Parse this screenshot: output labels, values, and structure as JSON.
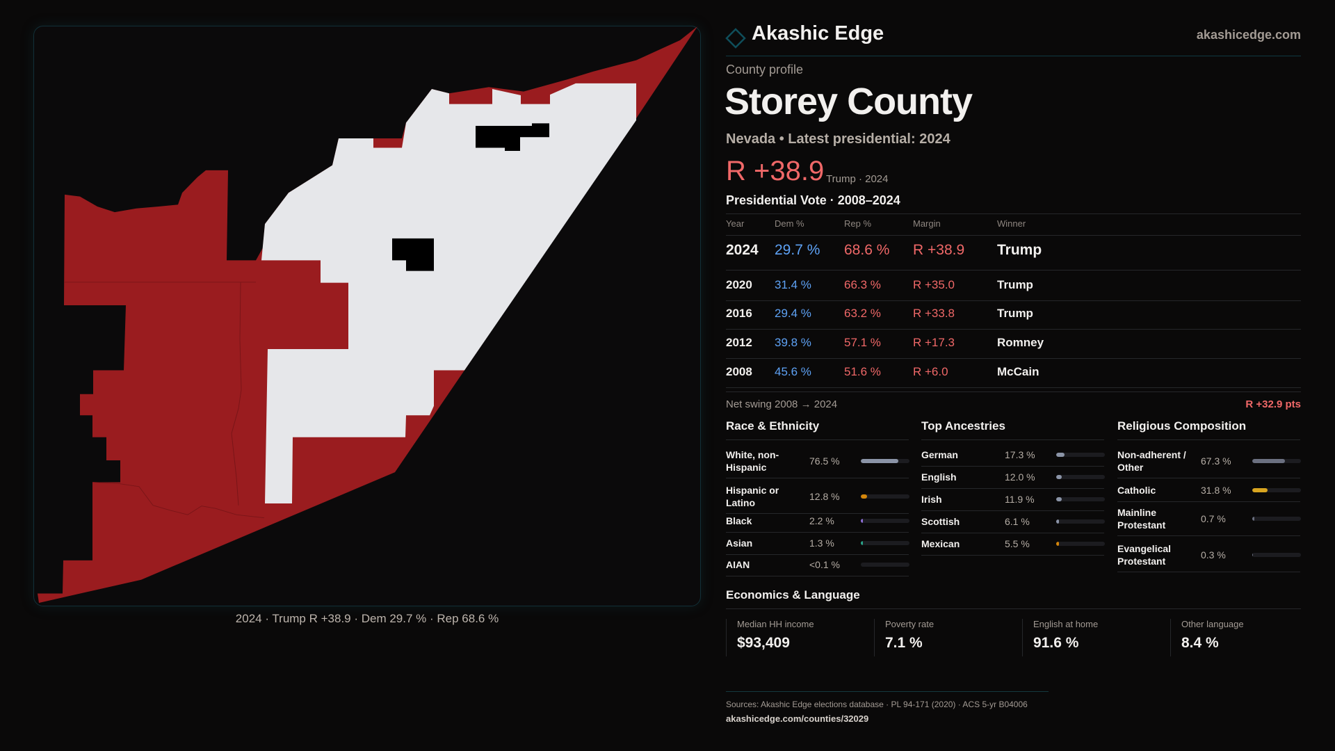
{
  "brand": {
    "name": "Akashic Edge",
    "site": "akashicedge.com",
    "accent": "#0f4e5a"
  },
  "profile": {
    "kicker": "County profile",
    "title": "Storey County",
    "subtitle": "Nevada • Latest presidential: 2024",
    "margin": "R +38.9",
    "margin_note": "Trump · 2024"
  },
  "map": {
    "caption": "2024 · Trump R +38.9 · Dem 29.7 % · Rep 68.6 %",
    "colors": {
      "rep": "#9a1c1f",
      "no_data": "#e6e7ea"
    }
  },
  "votes": {
    "title": "Presidential Vote · 2008–2024",
    "headers": [
      "Year",
      "Dem %",
      "Rep %",
      "Margin",
      "Winner"
    ],
    "rows": [
      {
        "year": "2024",
        "dem": "29.7 %",
        "rep": "68.6 %",
        "margin": "R +38.9",
        "winner": "Trump"
      },
      {
        "year": "2020",
        "dem": "31.4 %",
        "rep": "66.3 %",
        "margin": "R +35.0",
        "winner": "Trump"
      },
      {
        "year": "2016",
        "dem": "29.4 %",
        "rep": "63.2 %",
        "margin": "R +33.8",
        "winner": "Trump"
      },
      {
        "year": "2012",
        "dem": "39.8 %",
        "rep": "57.1 %",
        "margin": "R +17.3",
        "winner": "Romney"
      },
      {
        "year": "2008",
        "dem": "45.6 %",
        "rep": "51.6 %",
        "margin": "R +6.0",
        "winner": "McCain"
      }
    ]
  },
  "swing": {
    "label": "Net swing 2008 → 2024",
    "value": "R +32.9 pts"
  },
  "race": {
    "title": "Race & Ethnicity",
    "items": [
      {
        "label": "White, non-Hispanic",
        "value": "76.5 %",
        "pct": 76.5,
        "color": "#8b94a7"
      },
      {
        "label": "Hispanic or Latino",
        "value": "12.8 %",
        "pct": 12.8,
        "color": "#d4860b"
      },
      {
        "label": "Black",
        "value": "2.2 %",
        "pct": 2.2,
        "color": "#8e6fd8"
      },
      {
        "label": "Asian",
        "value": "1.3 %",
        "pct": 1.3,
        "color": "#2aa58a"
      },
      {
        "label": "AIAN",
        "value": "<0.1 %",
        "pct": 0.05,
        "color": "#8b94a7"
      }
    ]
  },
  "ancestry": {
    "title": "Top Ancestries",
    "items": [
      {
        "label": "German",
        "value": "17.3 %",
        "pct": 17.3,
        "color": "#8b94a7"
      },
      {
        "label": "English",
        "value": "12.0 %",
        "pct": 12.0,
        "color": "#8b94a7"
      },
      {
        "label": "Irish",
        "value": "11.9 %",
        "pct": 11.9,
        "color": "#8b94a7"
      },
      {
        "label": "Scottish",
        "value": "6.1 %",
        "pct": 6.1,
        "color": "#8b94a7"
      },
      {
        "label": "Mexican",
        "value": "5.5 %",
        "pct": 5.5,
        "color": "#d4860b"
      }
    ]
  },
  "religion": {
    "title": "Religious Composition",
    "items": [
      {
        "label": "Non-adherent / Other",
        "value": "67.3 %",
        "pct": 67.3,
        "color": "#6b7080"
      },
      {
        "label": "Catholic",
        "value": "31.8 %",
        "pct": 31.8,
        "color": "#d8a520"
      },
      {
        "label": "Mainline Protestant",
        "value": "0.7 %",
        "pct": 0.7,
        "color": "#6b7080"
      },
      {
        "label": "Evangelical Protestant",
        "value": "0.3 %",
        "pct": 0.3,
        "color": "#6b7080"
      }
    ]
  },
  "economics": {
    "title": "Economics & Language",
    "stats": [
      {
        "label": "Median HH income",
        "value": "$93,409"
      },
      {
        "label": "Poverty rate",
        "value": "7.1 %"
      },
      {
        "label": "English at home",
        "value": "91.6 %"
      },
      {
        "label": "Other language",
        "value": "8.4 %"
      }
    ]
  },
  "footer": {
    "sources": "Sources: Akashic Edge elections database · PL 94-171 (2020) · ACS 5-yr B04006",
    "url": "akashicedge.com/counties/32029"
  }
}
